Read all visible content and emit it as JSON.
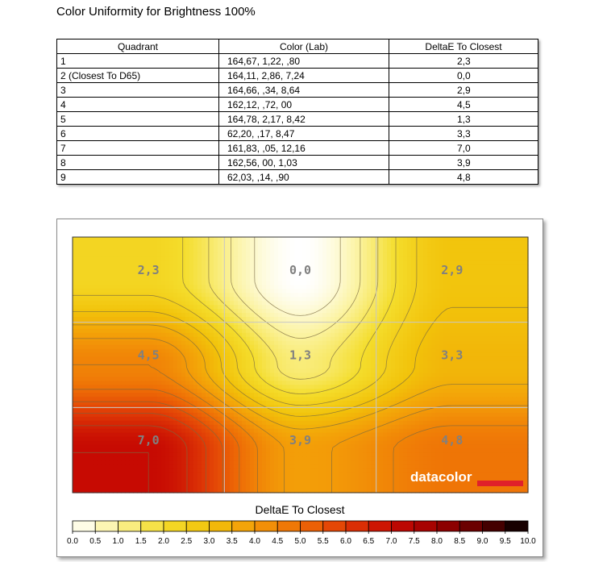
{
  "report_title": "Color Uniformity for Brightness 100%",
  "table": {
    "headers": [
      "Quadrant",
      "Color (Lab)",
      "DeltaE To Closest"
    ],
    "rows": [
      [
        "1",
        "164,67,   1,22,    ,80",
        "2,3"
      ],
      [
        "2 (Closest To D65)",
        "164,11,   2,86,   7,24",
        "0,0"
      ],
      [
        "3",
        "164,66,   ,34,   8,64",
        "2,9"
      ],
      [
        "4",
        "162,12,   ,72,    00",
        "4,5"
      ],
      [
        "5",
        "164,78,   2,17,   8,42",
        "1,3"
      ],
      [
        "6",
        " 62,20,   ,17,   8,47",
        "3,3"
      ],
      [
        "7",
        "161,83,   ,05,  12,16",
        "7,0"
      ],
      [
        "8",
        "162,56,    00,   1,03",
        "3,9"
      ],
      [
        "9",
        " 62,03,   ,14,    ,90",
        "4,8"
      ]
    ]
  },
  "chart_data": {
    "type": "heatmap",
    "grid": [
      [
        2.3,
        0.0,
        2.9
      ],
      [
        4.5,
        1.3,
        3.3
      ],
      [
        7.0,
        3.9,
        4.8
      ]
    ],
    "cell_labels": [
      "2,3",
      "0,0",
      "2,9",
      "4,5",
      "1,3",
      "3,3",
      "7,0",
      "3,9",
      "4,8"
    ],
    "legend_title": "DeltaE To Closest",
    "scale_min": 0,
    "scale_max": 10,
    "scale_step": 0.5,
    "scale_ticks": [
      "0.0",
      "0.5",
      "1.0",
      "1.5",
      "2.0",
      "2.5",
      "3.0",
      "3.5",
      "4.0",
      "4.5",
      "5.0",
      "5.5",
      "6.0",
      "6.5",
      "7.0",
      "7.5",
      "8.0",
      "8.5",
      "9.0",
      "9.5",
      "10.0"
    ],
    "color_stops": [
      {
        "value": 0.0,
        "color": "#ffffff"
      },
      {
        "value": 1.0,
        "color": "#fbf29a"
      },
      {
        "value": 2.0,
        "color": "#f4dd2c"
      },
      {
        "value": 3.0,
        "color": "#f2c20a"
      },
      {
        "value": 4.0,
        "color": "#f39a08"
      },
      {
        "value": 5.0,
        "color": "#ee6c06"
      },
      {
        "value": 6.0,
        "color": "#e03a06"
      },
      {
        "value": 7.0,
        "color": "#c70a02"
      },
      {
        "value": 8.0,
        "color": "#9c0000"
      },
      {
        "value": 9.0,
        "color": "#5a0000"
      },
      {
        "value": 10.0,
        "color": "#000000"
      }
    ],
    "contour_levels": [
      0.5,
      1.0,
      1.5,
      2.0,
      2.5,
      3.0,
      3.5,
      4.0,
      4.5,
      5.0,
      5.5,
      6.0,
      6.5,
      7.0
    ],
    "label_color": "#808080",
    "gridline_color": "#c8c8c8",
    "contour_color": "#7a6a40"
  },
  "watermark": {
    "text": "datacolor",
    "bar_color": "#e0202a"
  }
}
